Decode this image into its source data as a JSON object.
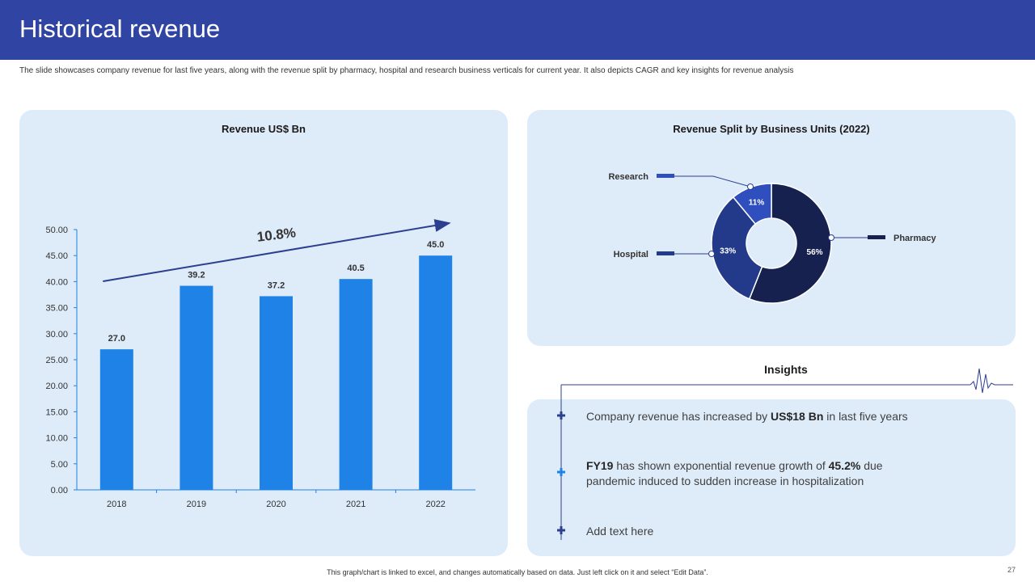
{
  "slide": {
    "title": "Historical revenue",
    "subtitle": "The slide showcases company revenue for last five years, along with the revenue split by pharmacy, hospital and research business verticals for current year. It also depicts CAGR and key insights for revenue analysis",
    "footer_note": "This graph/chart is linked to excel, and changes automatically based on data. Just left click on it and select “Edit Data”.",
    "page_number": "27"
  },
  "colors": {
    "header": "#3045a3",
    "panel": "#deebf9",
    "bar": "#1f82e6",
    "pharmacy": "#17214f",
    "hospital": "#233a8a",
    "research": "#2f4fbf",
    "accent_line": "#2c3f8f"
  },
  "chart_data": [
    {
      "type": "bar",
      "title": "Revenue US$ Bn",
      "categories": [
        "2018",
        "2019",
        "2020",
        "2021",
        "2022"
      ],
      "values": [
        27.0,
        39.2,
        37.2,
        40.5,
        45.0
      ],
      "ylim": [
        0,
        50
      ],
      "yticks": [
        "0.00",
        "5.00",
        "10.00",
        "15.00",
        "20.00",
        "25.00",
        "30.00",
        "35.00",
        "40.00",
        "45.00",
        "50.00"
      ],
      "data_labels": [
        "27.0",
        "39.2",
        "37.2",
        "40.5",
        "45.0"
      ],
      "annotation": "10.8%",
      "grid": false
    },
    {
      "type": "pie",
      "title": "Revenue Split by Business Units (2022)",
      "donut": true,
      "slices": [
        {
          "name": "Pharmacy",
          "value": 56,
          "label": "56%"
        },
        {
          "name": "Hospital",
          "value": 33,
          "label": "33%"
        },
        {
          "name": "Research",
          "value": 11,
          "label": "11%"
        }
      ]
    }
  ],
  "insights": {
    "title": "Insights",
    "items": [
      {
        "pre": "Company revenue has increased by ",
        "bold": "US$18 Bn",
        "post": " in last five years"
      },
      {
        "bold": "FY19",
        "mid": " has shown exponential revenue growth of ",
        "bold2": "45.2%",
        "post": " due",
        "line2": "pandemic induced to sudden increase in hospitalization"
      },
      {
        "pre": "Add text here"
      }
    ],
    "icons": [
      "plus-icon",
      "plus-icon",
      "plus-icon",
      "heartbeat-icon"
    ]
  }
}
